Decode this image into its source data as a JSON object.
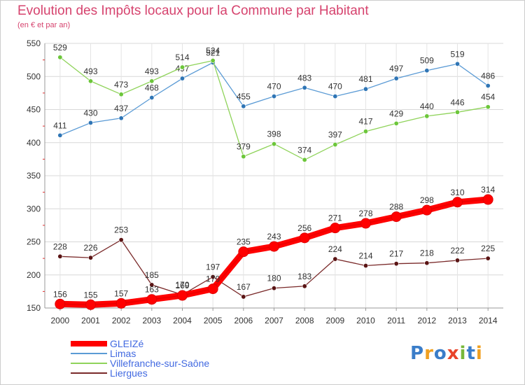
{
  "chart_data": {
    "type": "line",
    "title": "Evolution des Impôts locaux pour la Commune par Habitant",
    "subtitle": "(en € et par an)",
    "x": [
      "2000",
      "2001",
      "2002",
      "2003",
      "2004",
      "2005",
      "2006",
      "2007",
      "2008",
      "2009",
      "2010",
      "2011",
      "2012",
      "2013",
      "2014"
    ],
    "ylim": [
      150,
      550
    ],
    "yticks": [
      150,
      200,
      250,
      300,
      350,
      400,
      450,
      500,
      550
    ],
    "grid": true,
    "legend_position": "bottom-left",
    "series": [
      {
        "name": "Limas",
        "color": "#5b9bd5",
        "marker_color": "#2f75b5",
        "values": [
          411,
          430,
          437,
          468,
          497,
          521,
          455,
          470,
          483,
          470,
          481,
          497,
          509,
          519,
          486
        ]
      },
      {
        "name": "Villefranche-sur-Saône",
        "color": "#8fd35a",
        "marker_color": "#6cc63a",
        "values": [
          529,
          493,
          473,
          493,
          514,
          524,
          379,
          398,
          374,
          397,
          417,
          429,
          440,
          446,
          454
        ]
      },
      {
        "name": "Liergues",
        "color": "#7a2a2a",
        "marker_color": "#5a1414",
        "values": [
          228,
          226,
          253,
          185,
          170,
          197,
          167,
          180,
          183,
          224,
          214,
          217,
          218,
          222,
          225
        ]
      },
      {
        "name": "GLEIZé",
        "color": "#ff0000",
        "marker_color": "#ff0000",
        "values": [
          156,
          155,
          157,
          163,
          169,
          179,
          235,
          243,
          256,
          271,
          278,
          288,
          298,
          310,
          314
        ],
        "emphasis": true
      }
    ],
    "legend_order": [
      "GLEIZé",
      "Limas",
      "Villefranche-sur-Saône",
      "Liergues"
    ]
  },
  "brand": {
    "letters": [
      "P",
      "r",
      "o",
      "x",
      "i",
      "t",
      "i"
    ],
    "colors": [
      "#3a7dc9",
      "#f0a020",
      "#3a7dc9",
      "#e8442a",
      "#78b83a",
      "#3a7dc9",
      "#f0a020"
    ]
  }
}
